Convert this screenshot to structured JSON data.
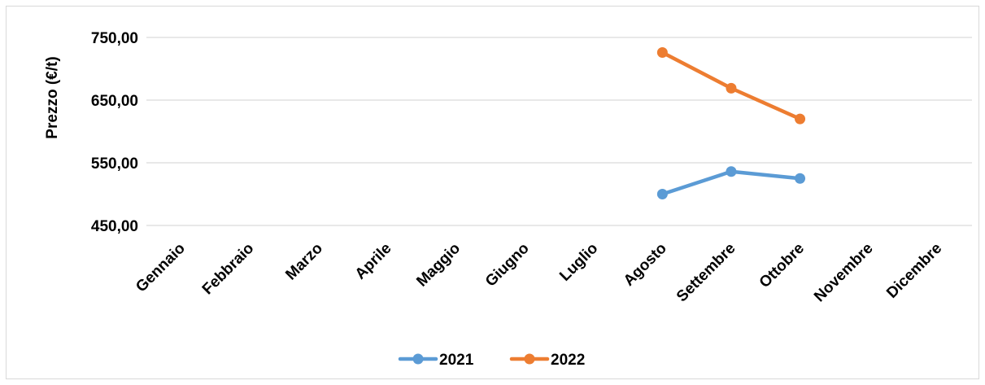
{
  "chart_data": {
    "type": "line",
    "title": "",
    "xlabel": "",
    "ylabel": "Prezzo (€/t)",
    "ylim": [
      400,
      750
    ],
    "yticks": [
      "450,00",
      "550,00",
      "650,00",
      "750,00"
    ],
    "ytick_values": [
      450,
      550,
      650,
      750
    ],
    "grid": "horizontal",
    "legend_position": "bottom",
    "categories": [
      "Gennaio",
      "Febbraio",
      "Marzo",
      "Aprile",
      "Maggio",
      "Giugno",
      "Luglio",
      "Agosto",
      "Settembre",
      "Ottobre",
      "Novembre",
      "Dicembre"
    ],
    "series": [
      {
        "name": "2021",
        "color": "#5b9bd5",
        "values": [
          null,
          null,
          null,
          null,
          null,
          null,
          null,
          500,
          536,
          525,
          null,
          null
        ]
      },
      {
        "name": "2022",
        "color": "#ed7d31",
        "values": [
          null,
          null,
          null,
          null,
          null,
          null,
          null,
          726,
          669,
          620,
          null,
          null
        ]
      }
    ]
  }
}
